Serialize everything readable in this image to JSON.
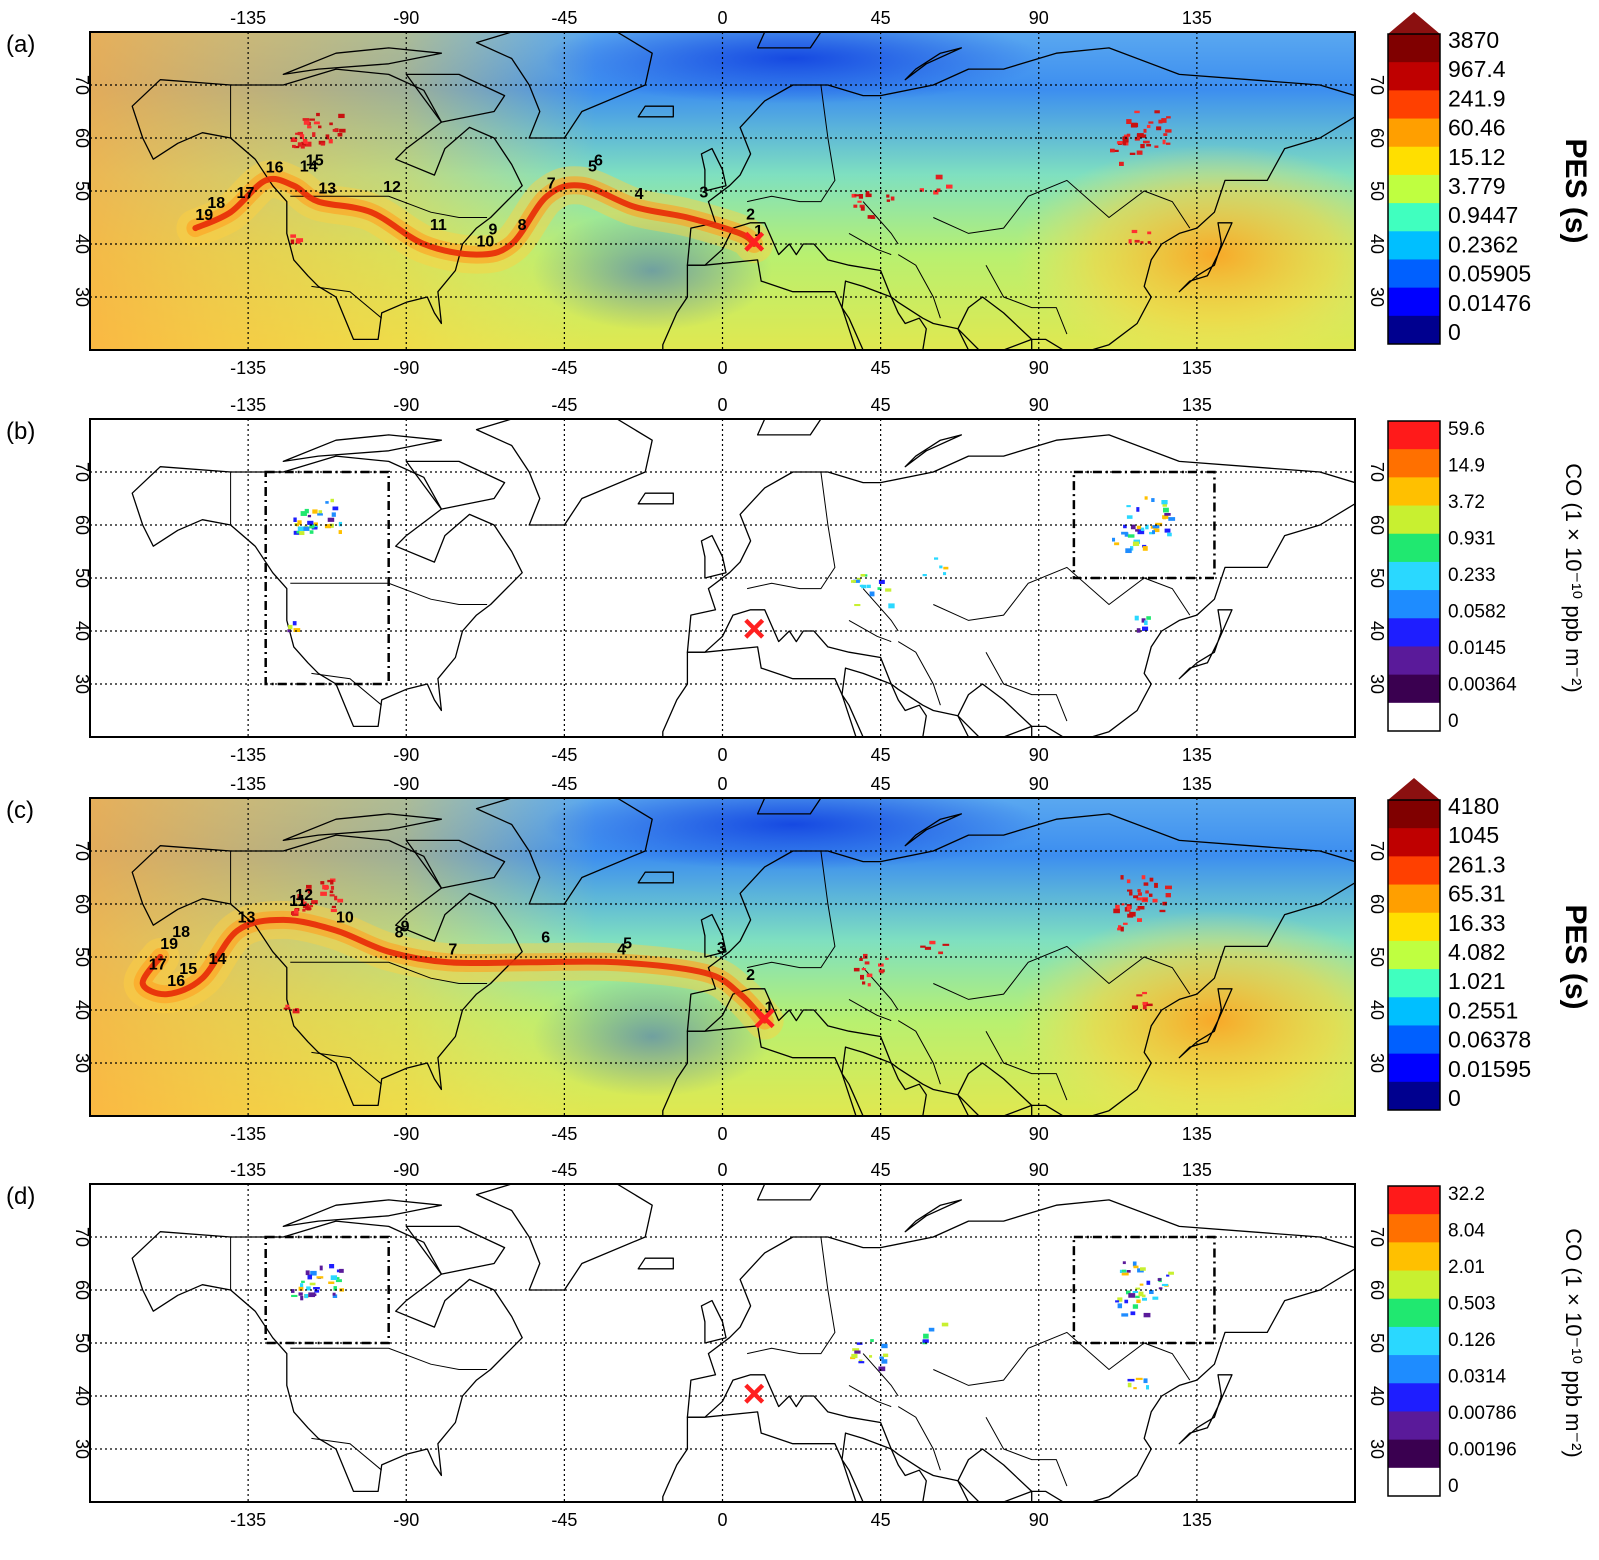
{
  "panels": [
    {
      "label": "(a)",
      "type": "pes",
      "cbar_title": "PES (s)",
      "cbar_ticks": [
        "3870",
        "967.4",
        "241.9",
        "60.46",
        "15.12",
        "3.779",
        "0.9447",
        "0.2362",
        "0.05905",
        "0.01476",
        "0"
      ],
      "trajectory": [
        [
          -150,
          43
        ],
        [
          -140,
          46
        ],
        [
          -130,
          52
        ],
        [
          -122,
          51
        ],
        [
          -115,
          48
        ],
        [
          -100,
          46
        ],
        [
          -85,
          40
        ],
        [
          -70,
          38
        ],
        [
          -60,
          40
        ],
        [
          -50,
          49
        ],
        [
          -40,
          51
        ],
        [
          -25,
          47
        ],
        [
          -10,
          45
        ],
        [
          5,
          42
        ],
        [
          9,
          40
        ]
      ],
      "markers": [
        "1",
        "2",
        "3",
        "4",
        "5",
        "6",
        "7",
        "8",
        "9",
        "10",
        "11",
        "12",
        "13",
        "14",
        "15",
        "16",
        "17",
        "18",
        "19"
      ],
      "boxes": [],
      "receptor": {
        "lon": 9,
        "lat": 40,
        "symbol": "×"
      }
    },
    {
      "label": "(b)",
      "type": "co",
      "cbar_title": "CO (1 × 10⁻¹⁰ ppb m⁻²)",
      "cbar_ticks": [
        "59.6",
        "14.9",
        "3.72",
        "0.931",
        "0.233",
        "0.0582",
        "0.0145",
        "0.00364",
        "0"
      ],
      "trajectory": [],
      "markers": [],
      "boxes": [
        {
          "lon": [
            -130,
            -95
          ],
          "lat": [
            30,
            70
          ]
        },
        {
          "lon": [
            100,
            140
          ],
          "lat": [
            50,
            70
          ]
        }
      ],
      "receptor": {
        "lon": 9,
        "lat": 40,
        "symbol": "×"
      }
    },
    {
      "label": "(c)",
      "type": "pes",
      "cbar_title": "PES (s)",
      "cbar_ticks": [
        "4180",
        "1045",
        "261.3",
        "65.31",
        "16.33",
        "4.082",
        "1.021",
        "0.2551",
        "0.06378",
        "0.01595",
        "0"
      ],
      "trajectory": [
        [
          -160,
          50
        ],
        [
          -165,
          45
        ],
        [
          -158,
          43
        ],
        [
          -148,
          46
        ],
        [
          -138,
          55
        ],
        [
          -125,
          57
        ],
        [
          -110,
          55
        ],
        [
          -95,
          51
        ],
        [
          -78,
          49
        ],
        [
          -55,
          49
        ],
        [
          -30,
          49
        ],
        [
          -5,
          47
        ],
        [
          5,
          43
        ],
        [
          12,
          38
        ]
      ],
      "markers": [
        "1",
        "2",
        "3",
        "4",
        "5",
        "6",
        "7",
        "8",
        "9",
        "10",
        "11",
        "12",
        "13",
        "14",
        "15",
        "16",
        "17",
        "18",
        "19"
      ],
      "boxes": [],
      "receptor": {
        "lon": 12,
        "lat": 38,
        "symbol": "×"
      }
    },
    {
      "label": "(d)",
      "type": "co",
      "cbar_title": "CO (1 × 10⁻¹⁰ ppb m⁻²)",
      "cbar_ticks": [
        "32.2",
        "8.04",
        "2.01",
        "0.503",
        "0.126",
        "0.0314",
        "0.00786",
        "0.00196",
        "0"
      ],
      "trajectory": [],
      "markers": [],
      "boxes": [
        {
          "lon": [
            -130,
            -95
          ],
          "lat": [
            50,
            70
          ]
        },
        {
          "lon": [
            100,
            140
          ],
          "lat": [
            50,
            70
          ]
        }
      ],
      "receptor": {
        "lon": 9,
        "lat": 40,
        "symbol": "×"
      }
    }
  ],
  "axes": {
    "lon_ticks": [
      "-135",
      "-90",
      "-45",
      "0",
      "45",
      "90",
      "135"
    ],
    "lon_values": [
      -135,
      -90,
      -45,
      0,
      45,
      90,
      135
    ],
    "lat_ticks": [
      "70",
      "60",
      "50",
      "40",
      "30"
    ],
    "lat_values": [
      70,
      60,
      50,
      40,
      30
    ],
    "lon_range": [
      -180,
      180
    ],
    "lat_range": [
      20,
      80
    ],
    "grid": true
  },
  "colors": {
    "pes_scale": [
      "#00008f",
      "#0000ff",
      "#0060ff",
      "#00bfff",
      "#40ffbf",
      "#bfff40",
      "#ffdf00",
      "#ff9f00",
      "#ff4000",
      "#bf0000",
      "#800000"
    ],
    "co_scale": [
      "#ffffff",
      "#3a0050",
      "#5a1a9a",
      "#1e1eff",
      "#1e8cff",
      "#2ad8ff",
      "#20e870",
      "#c8f030",
      "#ffc000",
      "#ff7000",
      "#ff1a1a"
    ],
    "arrow": "#8b1010",
    "receptor": "#ff2020",
    "trajectory": "#e8300a"
  }
}
